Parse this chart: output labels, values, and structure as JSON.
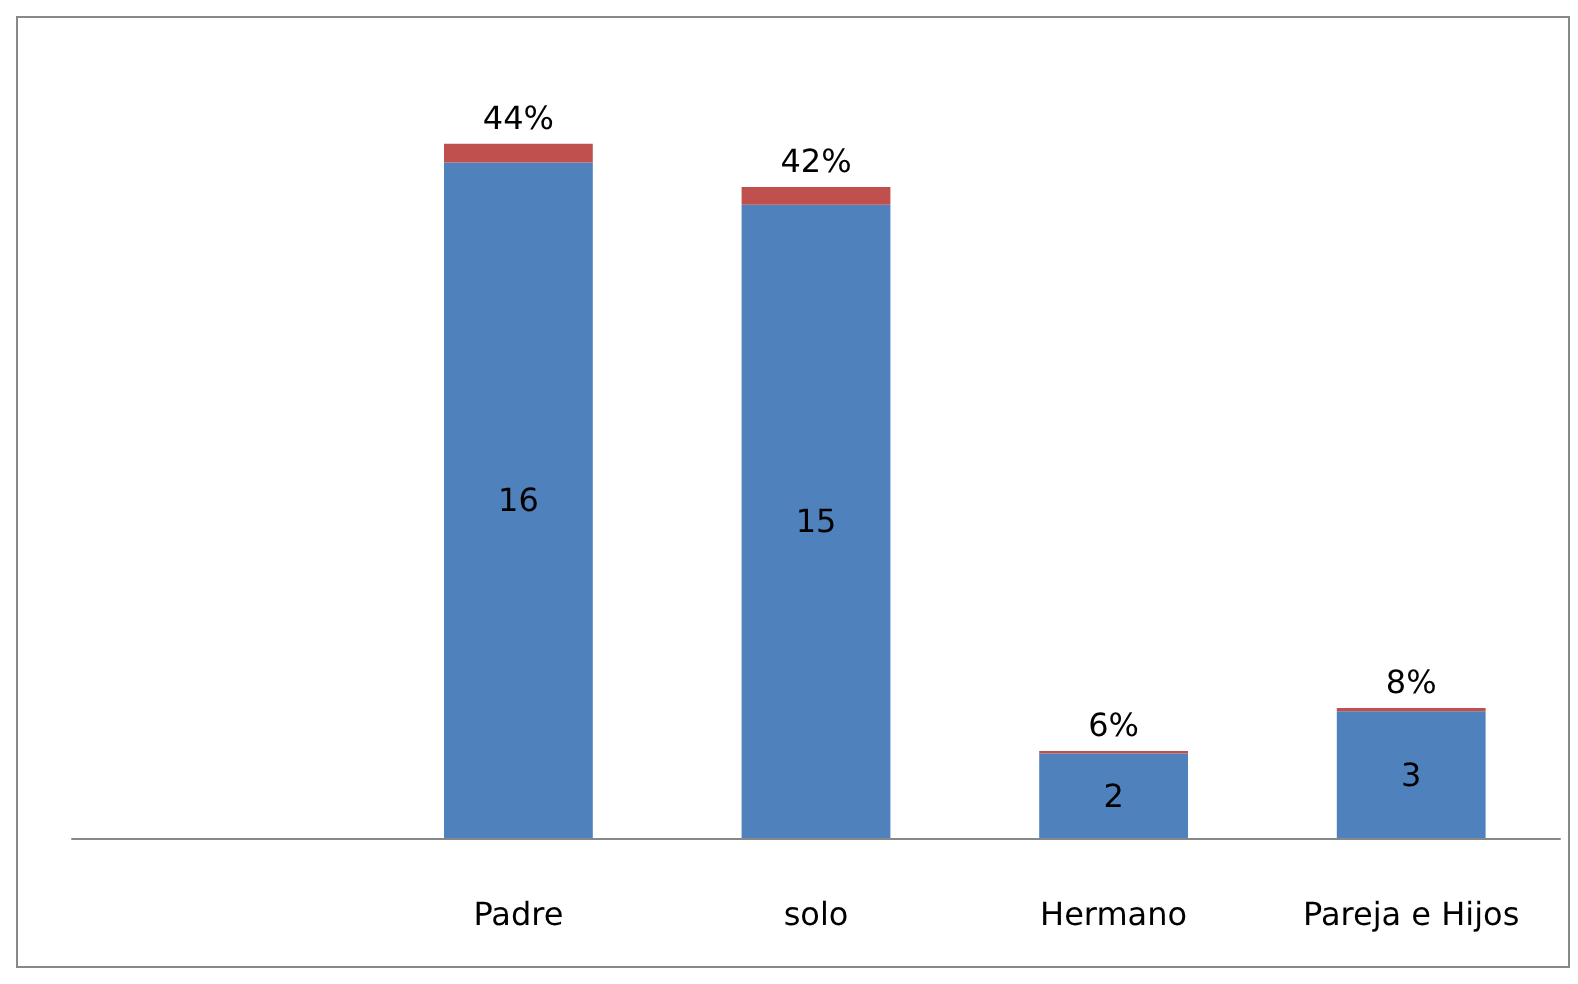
{
  "chart_data": {
    "type": "bar",
    "stacked": true,
    "categories": [
      null,
      "Padre",
      "solo",
      "Hermano",
      "Pareja e Hijos"
    ],
    "series": [
      {
        "color": "#4f81bd",
        "values": [
          null,
          16,
          15,
          2,
          3
        ],
        "data_labels": true
      },
      {
        "color": "#c0504d",
        "values": [
          null,
          0.44,
          0.42,
          0.06,
          0.08
        ],
        "value_labels": [
          null,
          "44%",
          "42%",
          "6%",
          "8%"
        ]
      }
    ],
    "grid": false
  }
}
